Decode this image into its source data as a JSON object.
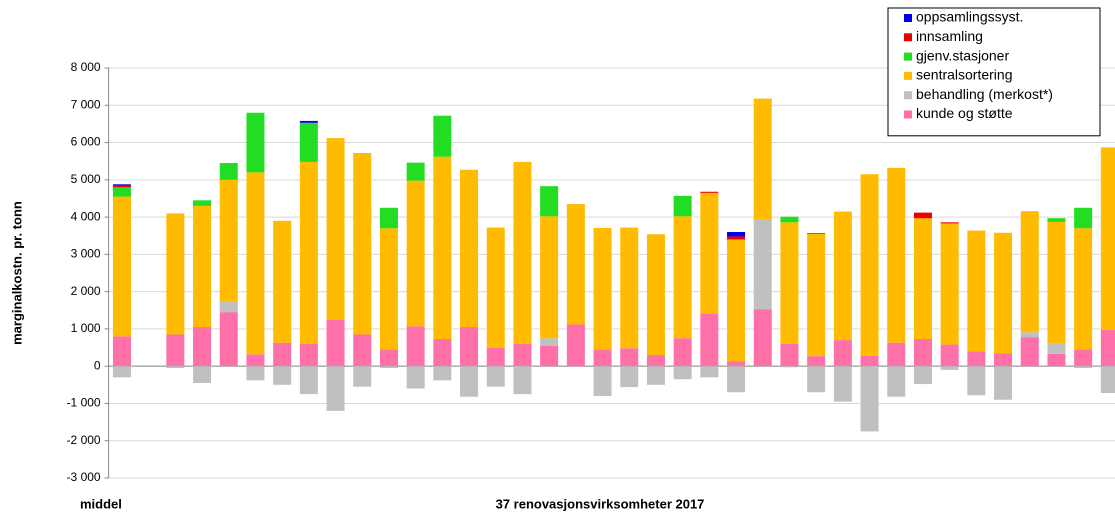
{
  "chart_data": {
    "type": "stacked_bar",
    "ylabel": "marginalkostn. pr. tonn",
    "x_labels": [
      "middel",
      "37 renovasjonsvirksomheter 2017"
    ],
    "categories": [
      null,
      null,
      null,
      null,
      null,
      null,
      null,
      null,
      null,
      null,
      null,
      null,
      null,
      null,
      null,
      null,
      null,
      null,
      null,
      null,
      null,
      null,
      null,
      null,
      null,
      null,
      null,
      null,
      null,
      null,
      null,
      null,
      null,
      null,
      null,
      null,
      null,
      null
    ],
    "ylim": [
      -3000,
      8000
    ],
    "yticks": [
      {
        "value": -3000,
        "label": "-3 000"
      },
      {
        "value": -2000,
        "label": "-2 000"
      },
      {
        "value": -1000,
        "label": "-1 000"
      },
      0,
      {
        "value": 1000,
        "label": "1 000"
      },
      {
        "value": 2000,
        "label": "2 000"
      },
      {
        "value": 3000,
        "label": "3 000"
      },
      {
        "value": 4000,
        "label": "4 000"
      },
      {
        "value": 5000,
        "label": "5 000"
      },
      {
        "value": 6000,
        "label": "6 000"
      },
      {
        "value": 7000,
        "label": "7 000"
      },
      {
        "value": 8000,
        "label": "8 000"
      }
    ],
    "grid": true,
    "legend": "upper right",
    "series": [
      {
        "name": "kunde og støtte",
        "color": "#ff6fa8",
        "values": [
          800,
          null,
          850,
          1050,
          1450,
          320,
          630,
          600,
          1250,
          850,
          450,
          1070,
          730,
          1050,
          490,
          600,
          550,
          1120,
          450,
          480,
          300,
          750,
          1400,
          130,
          1530,
          600,
          270,
          700,
          280,
          630,
          730,
          580,
          400,
          350,
          780,
          330,
          450,
          980
        ]
      },
      {
        "name": "behandling (merkost*)",
        "color": "#c0c0c0",
        "values": [
          -300,
          null,
          -50,
          -450,
          300,
          -380,
          -500,
          -750,
          -1200,
          -550,
          -50,
          -600,
          -380,
          -820,
          -550,
          -750,
          200,
          0,
          -800,
          -560,
          -500,
          -350,
          -300,
          -700,
          2400,
          -30,
          -700,
          -950,
          -1750,
          -820,
          -480,
          -100,
          -780,
          -900,
          130,
          270,
          -50,
          -720
        ]
      },
      {
        "name": "sentralsortering",
        "color": "#ffbb00",
        "values": [
          3750,
          null,
          3250,
          3250,
          3250,
          4880,
          3270,
          4880,
          4870,
          4870,
          3250,
          3910,
          4890,
          4220,
          3230,
          4880,
          3270,
          3230,
          3260,
          3240,
          3240,
          3270,
          3250,
          3270,
          3250,
          3260,
          3280,
          3450,
          4870,
          4690,
          3240,
          3250,
          3240,
          3230,
          3250,
          3270,
          3250,
          4890
        ]
      },
      {
        "name": "gjenv.stasjoner",
        "color": "#22dd22",
        "values": [
          250,
          null,
          0,
          150,
          450,
          1600,
          0,
          1050,
          0,
          0,
          550,
          480,
          1100,
          0,
          0,
          0,
          810,
          0,
          0,
          0,
          0,
          550,
          0,
          0,
          0,
          150,
          0,
          0,
          0,
          0,
          0,
          0,
          0,
          0,
          0,
          100,
          550,
          0
        ]
      },
      {
        "name": "innsamling",
        "color": "#ee0000",
        "values": [
          50,
          null,
          0,
          0,
          0,
          0,
          0,
          0,
          0,
          0,
          0,
          0,
          0,
          0,
          0,
          0,
          0,
          0,
          0,
          0,
          0,
          0,
          30,
          80,
          0,
          0,
          20,
          0,
          0,
          0,
          150,
          30,
          0,
          0,
          0,
          0,
          0,
          0
        ]
      },
      {
        "name": "oppsamlingssyst.",
        "color": "#0000ee",
        "values": [
          30,
          null,
          0,
          0,
          0,
          0,
          0,
          50,
          0,
          0,
          0,
          0,
          0,
          0,
          0,
          0,
          0,
          0,
          0,
          0,
          0,
          0,
          0,
          120,
          0,
          0,
          0,
          0,
          0,
          0,
          0,
          0,
          0,
          0,
          0,
          0,
          0,
          0
        ]
      }
    ]
  }
}
